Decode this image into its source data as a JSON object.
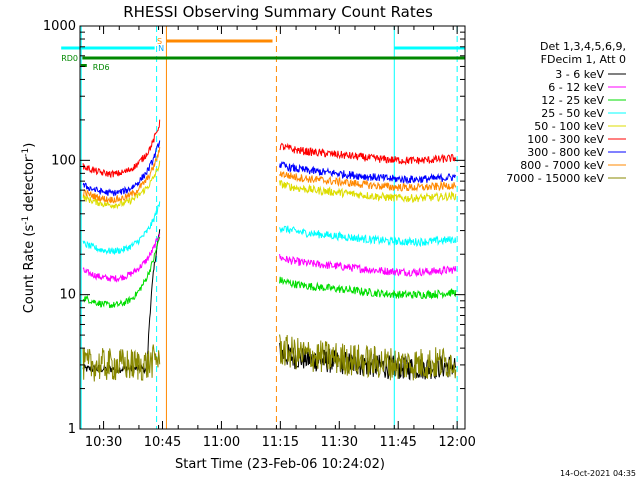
{
  "chart_data": {
    "type": "line",
    "title": "RHESSI Observing Summary Count Rates",
    "xlabel": "Start Time (23-Feb-06 10:24:02)",
    "ylabel_main": "Count Rate (s",
    "ylabel_sup1": "-1",
    "ylabel_mid": " detector",
    "ylabel_sup2": "-1",
    "ylabel_end": ")",
    "footer": "14-Oct-2021 04:35",
    "y_scale": "log",
    "ylim": [
      1,
      1000
    ],
    "xlim_minutes": [
      0,
      98
    ],
    "x_ticks": [
      {
        "m": 6,
        "label": "10:30"
      },
      {
        "m": 21,
        "label": "10:45"
      },
      {
        "m": 36,
        "label": "11:00"
      },
      {
        "m": 51,
        "label": "11:15"
      },
      {
        "m": 66,
        "label": "11:30"
      },
      {
        "m": 81,
        "label": "11:45"
      },
      {
        "m": 96,
        "label": "12:00"
      }
    ],
    "y_ticks": [
      {
        "v": 1,
        "label": "1"
      },
      {
        "v": 10,
        "label": "10"
      },
      {
        "v": 100,
        "label": "100"
      },
      {
        "v": 1000,
        "label": "1000"
      }
    ],
    "legend_header": [
      "Det 1,3,4,5,6,9,",
      "FDecim 1, Att 0"
    ],
    "legend_placement": "right",
    "series": [
      {
        "name": "3 - 6 keV",
        "color": "#000000",
        "seg1": {
          "start": 2.8,
          "peak": 30
        },
        "seg2": 3.0
      },
      {
        "name": "6 - 12 keV",
        "color": "#ff00ff",
        "seg1": {
          "start": 15,
          "peak": 29
        },
        "seg2": 15.5
      },
      {
        "name": "12 - 25 keV",
        "color": "#00dd00",
        "seg1": {
          "start": 9.5,
          "peak": 27
        },
        "seg2": 10.5
      },
      {
        "name": "25 - 50 keV",
        "color": "#00ffff",
        "seg1": {
          "start": 24,
          "peak": 48
        },
        "seg2": 26
      },
      {
        "name": "50 - 100 keV",
        "color": "#dddd00",
        "seg1": {
          "start": 53,
          "peak": 95
        },
        "seg2": 55
      },
      {
        "name": "100 - 300 keV",
        "color": "#ff0000",
        "seg1": {
          "start": 90,
          "peak": 190
        },
        "seg2": 105
      },
      {
        "name": "300 - 800 keV",
        "color": "#0000ff",
        "seg1": {
          "start": 65,
          "peak": 140
        },
        "seg2": 76
      },
      {
        "name": "800 - 7000 keV",
        "color": "#ff8800",
        "seg1": {
          "start": 58,
          "peak": 120
        },
        "seg2": 66
      },
      {
        "name": "7000 - 15000 keV",
        "color": "#888800",
        "seg1": {
          "start": 3.0,
          "peak": 3.5
        },
        "seg2": 3.2
      }
    ],
    "state_bars": [
      {
        "label": "RD0",
        "color": "#008800"
      },
      {
        "label": "RD6",
        "color": "#008800"
      }
    ],
    "saa_night_labels": {
      "s": "S",
      "n": "N"
    },
    "vertical_lines": [
      {
        "m": 0.3,
        "color": "#00ffff",
        "dashed": false
      },
      {
        "m": 19.5,
        "color": "#00ffff",
        "dashed": true
      },
      {
        "m": 22.0,
        "color": "#ff8800",
        "dashed": false
      },
      {
        "m": 50.0,
        "color": "#ff8800",
        "dashed": true
      },
      {
        "m": 80.0,
        "color": "#00ffff",
        "dashed": false
      },
      {
        "m": 96.0,
        "color": "#00ffff",
        "dashed": true
      }
    ]
  }
}
